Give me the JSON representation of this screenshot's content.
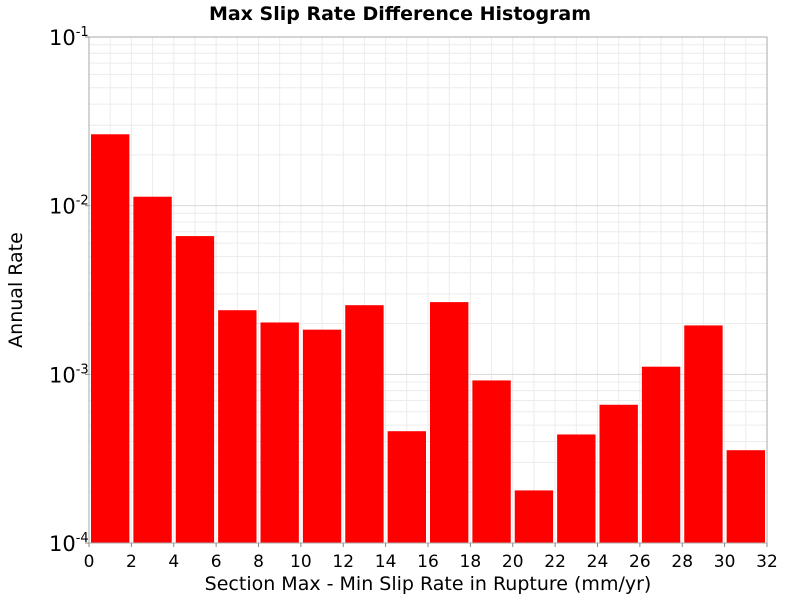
{
  "chart_data": {
    "type": "bar",
    "title": "Max Slip Rate Difference Histogram",
    "xlabel": "Section Max - Min Slip Rate in Rupture (mm/yr)",
    "ylabel": "Annual Rate",
    "xlim": [
      0,
      32
    ],
    "ylim": [
      0.0001,
      0.1
    ],
    "yscale": "log",
    "grid": true,
    "bar_color": "#ff0000",
    "bin_width": 2,
    "x": [
      1,
      3,
      5,
      7,
      9,
      11,
      13,
      15,
      17,
      19,
      21,
      23,
      25,
      27,
      29,
      31
    ],
    "values": [
      0.0265,
      0.0113,
      0.0066,
      0.0024,
      0.00203,
      0.00184,
      0.00257,
      0.00046,
      0.00268,
      0.00092,
      0.000205,
      0.00044,
      0.00066,
      0.00111,
      0.00195,
      0.000355
    ],
    "xticks": [
      "0",
      "2",
      "4",
      "6",
      "8",
      "10",
      "12",
      "14",
      "16",
      "18",
      "20",
      "22",
      "24",
      "26",
      "28",
      "30",
      "32"
    ],
    "yticks": [
      {
        "base": "10",
        "exp": "-1",
        "value": 0.1
      },
      {
        "base": "10",
        "exp": "-2",
        "value": 0.01
      },
      {
        "base": "10",
        "exp": "-3",
        "value": 0.001
      },
      {
        "base": "10",
        "exp": "-4",
        "value": 0.0001
      }
    ]
  }
}
